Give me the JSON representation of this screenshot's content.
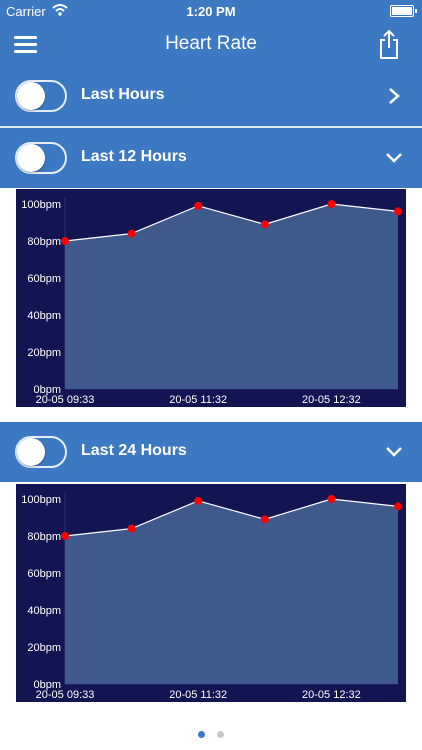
{
  "status_bar": {
    "carrier": "Carrier",
    "time": "1:20 PM"
  },
  "nav": {
    "title": "Heart Rate",
    "menu_icon": "hamburger-menu-icon",
    "share_icon": "share-icon"
  },
  "sections": [
    {
      "label": "Last Hours",
      "toggle_on": false,
      "chevron": "chevron-right-icon",
      "expanded": false
    },
    {
      "label": "Last 12 Hours",
      "toggle_on": false,
      "chevron": "chevron-down-icon",
      "expanded": true
    },
    {
      "label": "Last 24 Hours",
      "toggle_on": false,
      "chevron": "chevron-down-icon",
      "expanded": true
    }
  ],
  "colors": {
    "header_blue": "#3d78c3",
    "chart_background": "#131452",
    "area_fill": "#3e5a8c",
    "line": "#ffffff",
    "points": "#ff0000",
    "dot_active": "#3d78c3",
    "dot_inactive": "#c8c8c8"
  },
  "chart_data": [
    {
      "type": "area",
      "title": "",
      "xlabel": "",
      "ylabel": "",
      "ylim": [
        0,
        100
      ],
      "y_ticks": [
        "0bpm",
        "20bpm",
        "40bpm",
        "60bpm",
        "80bpm",
        "100bpm"
      ],
      "x_tick_labels": [
        "20-05 09:33",
        "20-05 11:32",
        "20-05 12:32"
      ],
      "series": [
        {
          "values": [
            80,
            84,
            99,
            89,
            100,
            96
          ]
        }
      ]
    },
    {
      "type": "area",
      "title": "",
      "xlabel": "",
      "ylabel": "",
      "ylim": [
        0,
        100
      ],
      "y_ticks": [
        "0bpm",
        "20bpm",
        "40bpm",
        "60bpm",
        "80bpm",
        "100bpm"
      ],
      "x_tick_labels": [
        "20-05 09:33",
        "20-05 11:32",
        "20-05 12:32"
      ],
      "series": [
        {
          "values": [
            80,
            84,
            99,
            89,
            100,
            96
          ]
        }
      ]
    }
  ],
  "page_control": {
    "pages": 2,
    "current": 1
  }
}
